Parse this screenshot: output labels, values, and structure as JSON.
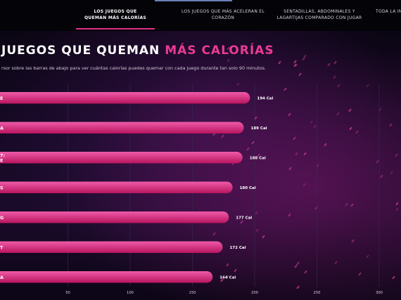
{
  "nav": {
    "tabs": [
      {
        "label": "LOS JUEGOS QUE QUEMAN MÁS CALORÍAS",
        "active": true
      },
      {
        "label": "LOS JUEGOS QUE MÁS ACELERAN EL CORAZÓN",
        "active": false
      },
      {
        "label": "SENTADILLAS, ABDOMINALES Y LAGARTIJAS COMPARADO CON JUGAR",
        "active": false
      },
      {
        "label": "TODA LA IN",
        "active": false
      }
    ]
  },
  "header": {
    "title_main": "JUEGOS QUE QUEMAN",
    "title_accent": "MÁS CALORÍAS",
    "subtitle": "rsor sobre las barras de abajo para ver cuántas calorías puedes quemar con cada juego durante tan solo 90 minutos."
  },
  "colors": {
    "bar_top": "#ef5aa8",
    "bar_bottom": "#b8155f",
    "accent": "#ea3b95"
  },
  "chart_data": {
    "type": "bar",
    "orientation": "horizontal",
    "categories": [
      "E",
      "A",
      "7: E",
      "S",
      "G",
      "T",
      "A"
    ],
    "values": [
      194,
      189,
      188,
      180,
      177,
      172,
      164
    ],
    "value_labels": [
      "194 Cal",
      "189 Cal",
      "188 Cal",
      "180 Cal",
      "177 Cal",
      "172 Cal",
      "164 Cal"
    ],
    "x_ticks": [
      50,
      100,
      150,
      200,
      250,
      300
    ],
    "xlim": [
      0,
      300
    ],
    "grid": true,
    "title": "JUEGOS QUE QUEMAN MÁS CALORÍAS"
  }
}
